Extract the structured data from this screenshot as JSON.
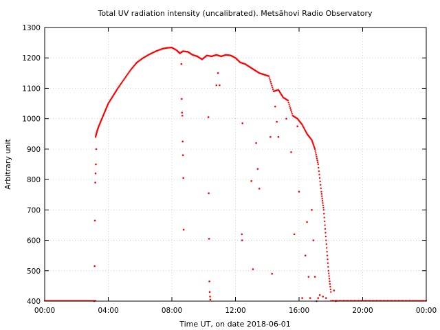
{
  "chart_data": {
    "type": "scatter",
    "title": "Total UV radiation intensity (uncalibrated). Metsähovi Radio Observatory",
    "xlabel": "Time UT, on date 2018-06-01",
    "ylabel": "Arbitrary unit",
    "xlim": [
      0,
      24
    ],
    "ylim": [
      400,
      1300
    ],
    "x_ticks": [
      0,
      4,
      8,
      12,
      16,
      20,
      24
    ],
    "x_tick_labels": [
      "00:00",
      "04:00",
      "08:00",
      "12:00",
      "16:00",
      "20:00",
      "00:00"
    ],
    "y_ticks": [
      400,
      500,
      600,
      700,
      800,
      900,
      1000,
      1100,
      1200,
      1300
    ],
    "y_tick_labels": [
      "400",
      "500",
      "600",
      "700",
      "800",
      "900",
      "1000",
      "1100",
      "1200",
      "1300"
    ],
    "grid": true,
    "marker_color": "#ff0000",
    "main_curve": {
      "x": [
        3.2,
        3.3,
        3.4,
        3.6,
        3.8,
        4.0,
        4.3,
        4.6,
        5.0,
        5.4,
        5.8,
        6.2,
        6.6,
        7.0,
        7.4,
        7.7,
        8.0,
        8.3,
        8.5,
        8.7,
        9.0,
        9.3,
        9.6,
        9.9,
        10.2,
        10.5,
        10.8,
        11.1,
        11.4,
        11.7,
        12.0,
        12.3,
        12.6,
        12.9,
        13.2,
        13.5,
        13.8,
        14.1,
        14.4,
        14.7,
        15.0,
        15.3,
        15.6,
        15.9,
        16.2,
        16.5,
        16.8,
        17.0,
        17.2,
        17.4,
        17.55,
        17.7,
        17.85,
        18.0
      ],
      "y": [
        940,
        960,
        975,
        1000,
        1025,
        1050,
        1075,
        1100,
        1130,
        1160,
        1185,
        1200,
        1212,
        1222,
        1230,
        1233,
        1234,
        1225,
        1215,
        1222,
        1220,
        1210,
        1205,
        1195,
        1208,
        1205,
        1210,
        1205,
        1210,
        1208,
        1200,
        1185,
        1180,
        1170,
        1160,
        1150,
        1145,
        1140,
        1090,
        1095,
        1070,
        1060,
        1010,
        1000,
        980,
        950,
        930,
        900,
        850,
        760,
        700,
        600,
        500,
        430
      ]
    },
    "night_floor": {
      "x": [
        0,
        3.2,
        18.0,
        24
      ],
      "y": [
        400,
        400,
        400,
        400
      ]
    },
    "scattered_points": {
      "x": [
        3.12,
        3.14,
        3.16,
        3.18,
        3.2,
        3.22,
        3.24,
        8.6,
        8.62,
        8.64,
        8.66,
        8.68,
        8.7,
        8.72,
        8.74,
        10.3,
        10.32,
        10.34,
        10.36,
        10.38,
        10.4,
        10.42,
        10.8,
        10.9,
        11.0,
        12.4,
        12.42,
        12.44,
        13.0,
        13.1,
        13.3,
        13.4,
        13.5,
        14.2,
        14.3,
        14.5,
        14.6,
        14.7,
        15.2,
        15.5,
        15.7,
        15.9,
        16.0,
        16.2,
        16.4,
        16.5,
        16.6,
        16.7,
        16.8,
        16.9,
        17.0,
        17.1,
        17.2,
        17.3,
        17.5,
        17.7,
        18.2,
        18.3
      ],
      "y": [
        400,
        515,
        665,
        790,
        820,
        850,
        900,
        1180,
        1065,
        1020,
        1010,
        925,
        880,
        805,
        635,
        1005,
        755,
        605,
        465,
        430,
        415,
        405,
        1110,
        1150,
        1110,
        620,
        600,
        985,
        795,
        505,
        920,
        835,
        770,
        940,
        490,
        1040,
        990,
        940,
        1000,
        890,
        620,
        975,
        760,
        410,
        550,
        660,
        480,
        410,
        700,
        600,
        480,
        400,
        410,
        420,
        415,
        410,
        435,
        400
      ]
    }
  }
}
